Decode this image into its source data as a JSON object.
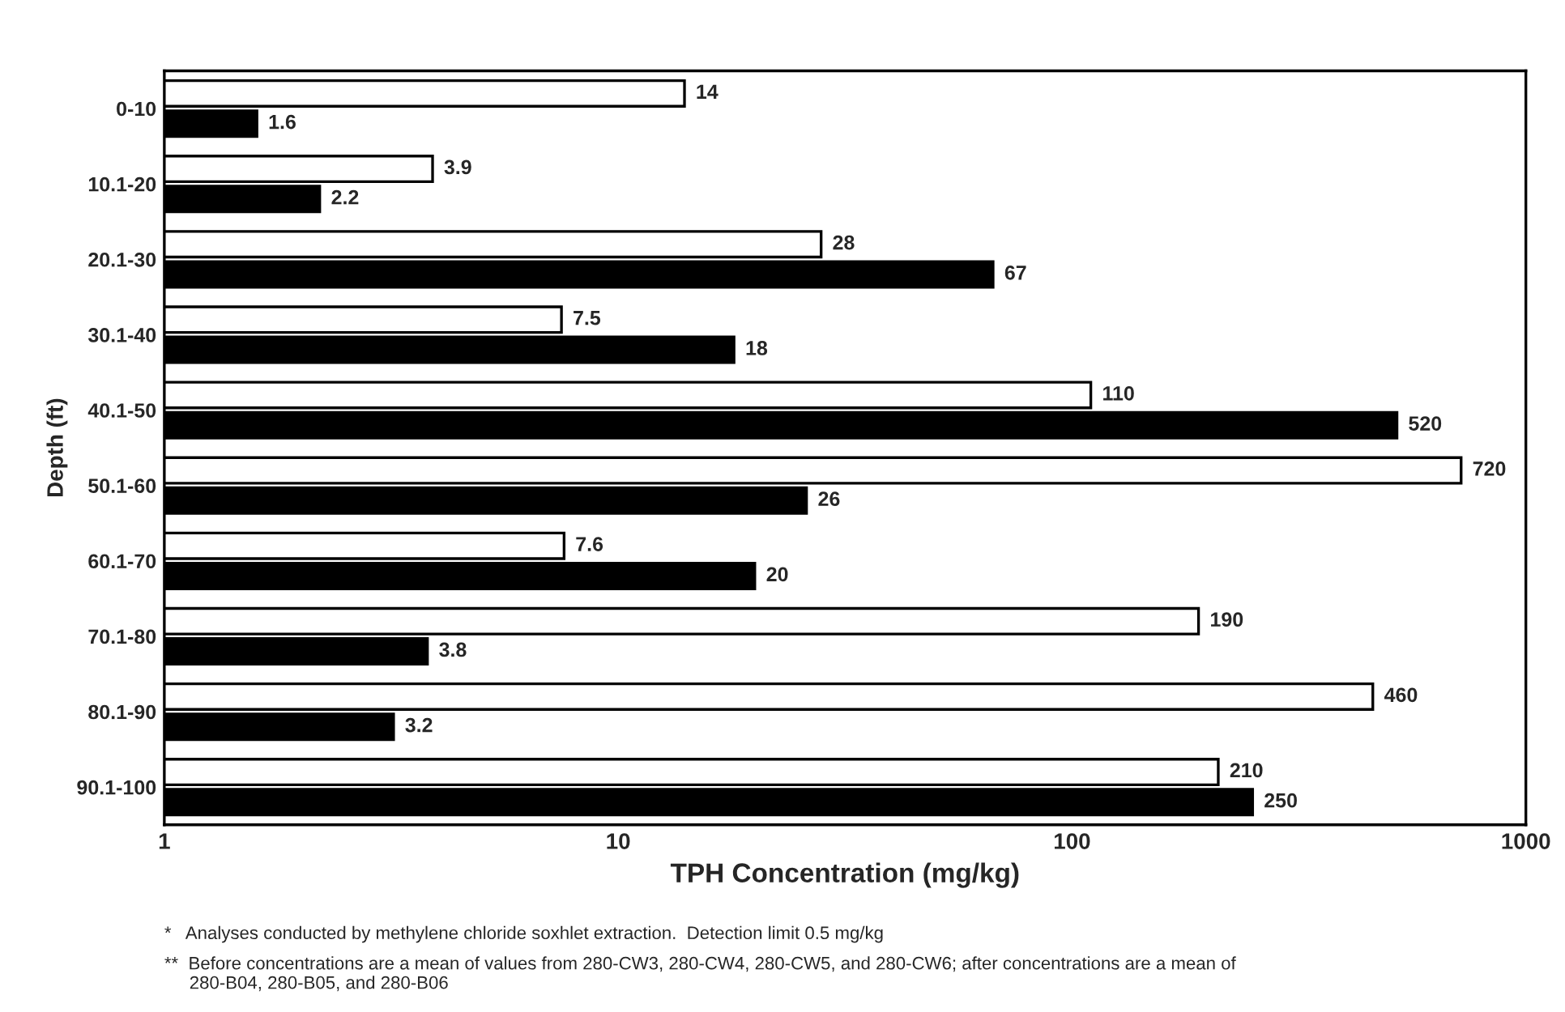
{
  "chart_data": {
    "type": "bar",
    "orientation": "horizontal",
    "xlabel": "TPH Concentration (mg/kg)",
    "ylabel": "Depth (ft)",
    "categories": [
      "0-10",
      "10.1-20",
      "20.1-30",
      "30.1-40",
      "40.1-50",
      "50.1-60",
      "60.1-70",
      "70.1-80",
      "80.1-90",
      "90.1-100"
    ],
    "series": [
      {
        "color": "#ffffff",
        "values": [
          14,
          3.9,
          28,
          7.5,
          110,
          720,
          7.6,
          190,
          460,
          210
        ]
      },
      {
        "color": "#000000",
        "values": [
          1.6,
          2.2,
          67,
          18,
          520,
          26,
          20,
          3.8,
          3.2,
          250
        ]
      }
    ],
    "log": "x",
    "xlim": [
      1,
      1000
    ],
    "xticks": [
      1,
      10,
      100,
      1000
    ],
    "data_labels": true,
    "grid": false,
    "legend": false,
    "annotations": [
      "*   Analyses conducted by methylene chloride soxhlet extraction.  Detection limit 0.5 mg/kg",
      "**  Before concentrations are a mean of values from 280-CW3, 280-CW4, 280-CW5, and 280-CW6; after concentrations are a mean of\n     280-B04, 280-B05, and 280-B06"
    ]
  }
}
